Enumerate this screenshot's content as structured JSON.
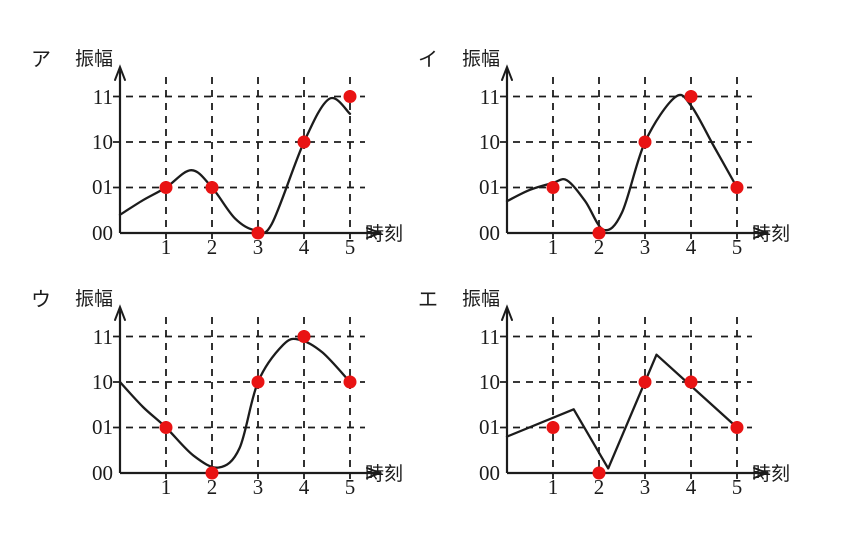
{
  "page": {
    "background": "#ffffff"
  },
  "colors": {
    "ink": "#1c1c1c",
    "point": "#e91313"
  },
  "chart_data": [
    {
      "type": "line",
      "label": "ア",
      "ylabel": "振幅",
      "xlabel": "時刻",
      "x_ticks": [
        "1",
        "2",
        "3",
        "4",
        "5"
      ],
      "y_ticks": [
        "00",
        "01",
        "10",
        "11"
      ],
      "points": [
        {
          "time": "1",
          "amplitude": "01"
        },
        {
          "time": "2",
          "amplitude": "01"
        },
        {
          "time": "3",
          "amplitude": "00"
        },
        {
          "time": "4",
          "amplitude": "10"
        },
        {
          "time": "5",
          "amplitude": "11"
        }
      ],
      "curve_style": "smooth",
      "curve_path": [
        [
          0,
          0.4
        ],
        [
          0.5,
          0.72
        ],
        [
          1,
          1
        ],
        [
          1.55,
          1.38
        ],
        [
          2,
          1
        ],
        [
          2.5,
          0.32
        ],
        [
          2.95,
          0.06
        ],
        [
          3.3,
          0.2
        ],
        [
          4,
          2
        ],
        [
          4.55,
          2.95
        ],
        [
          5,
          2.62
        ]
      ]
    },
    {
      "type": "line",
      "label": "イ",
      "ylabel": "振幅",
      "xlabel": "時刻",
      "x_ticks": [
        "1",
        "2",
        "3",
        "4",
        "5"
      ],
      "y_ticks": [
        "00",
        "01",
        "10",
        "11"
      ],
      "points": [
        {
          "time": "1",
          "amplitude": "01"
        },
        {
          "time": "2",
          "amplitude": "00"
        },
        {
          "time": "3",
          "amplitude": "10"
        },
        {
          "time": "4",
          "amplitude": "11"
        },
        {
          "time": "5",
          "amplitude": "01"
        }
      ],
      "curve_style": "smooth",
      "curve_path": [
        [
          0,
          0.7
        ],
        [
          0.5,
          0.95
        ],
        [
          1,
          1.1
        ],
        [
          1.3,
          1.16
        ],
        [
          1.7,
          0.7
        ],
        [
          2.1,
          0.07
        ],
        [
          2.5,
          0.45
        ],
        [
          3,
          2
        ],
        [
          3.65,
          2.98
        ],
        [
          4,
          2.8
        ],
        [
          4.5,
          1.9
        ],
        [
          5,
          1
        ]
      ]
    },
    {
      "type": "line",
      "label": "ウ",
      "ylabel": "振幅",
      "xlabel": "時刻",
      "x_ticks": [
        "1",
        "2",
        "3",
        "4",
        "5"
      ],
      "y_ticks": [
        "00",
        "01",
        "10",
        "11"
      ],
      "points": [
        {
          "time": "1",
          "amplitude": "01"
        },
        {
          "time": "2",
          "amplitude": "00"
        },
        {
          "time": "3",
          "amplitude": "10"
        },
        {
          "time": "4",
          "amplitude": "11"
        },
        {
          "time": "5",
          "amplitude": "10"
        }
      ],
      "curve_style": "smooth",
      "curve_path": [
        [
          0,
          2
        ],
        [
          0.5,
          1.45
        ],
        [
          1,
          1
        ],
        [
          1.6,
          0.38
        ],
        [
          2.15,
          0.12
        ],
        [
          2.6,
          0.55
        ],
        [
          3,
          2
        ],
        [
          3.55,
          2.82
        ],
        [
          3.9,
          2.93
        ],
        [
          4.4,
          2.65
        ],
        [
          5,
          2
        ]
      ]
    },
    {
      "type": "line",
      "label": "エ",
      "ylabel": "振幅",
      "xlabel": "時刻",
      "x_ticks": [
        "1",
        "2",
        "3",
        "4",
        "5"
      ],
      "y_ticks": [
        "00",
        "01",
        "10",
        "11"
      ],
      "points": [
        {
          "time": "1",
          "amplitude": "01"
        },
        {
          "time": "2",
          "amplitude": "00"
        },
        {
          "time": "3",
          "amplitude": "10"
        },
        {
          "time": "4",
          "amplitude": "10"
        },
        {
          "time": "5",
          "amplitude": "01"
        }
      ],
      "curve_style": "linear",
      "curve_path": [
        [
          0,
          0.8
        ],
        [
          1.45,
          1.4
        ],
        [
          2.2,
          0.1
        ],
        [
          3.25,
          2.6
        ],
        [
          5,
          1
        ]
      ]
    }
  ]
}
